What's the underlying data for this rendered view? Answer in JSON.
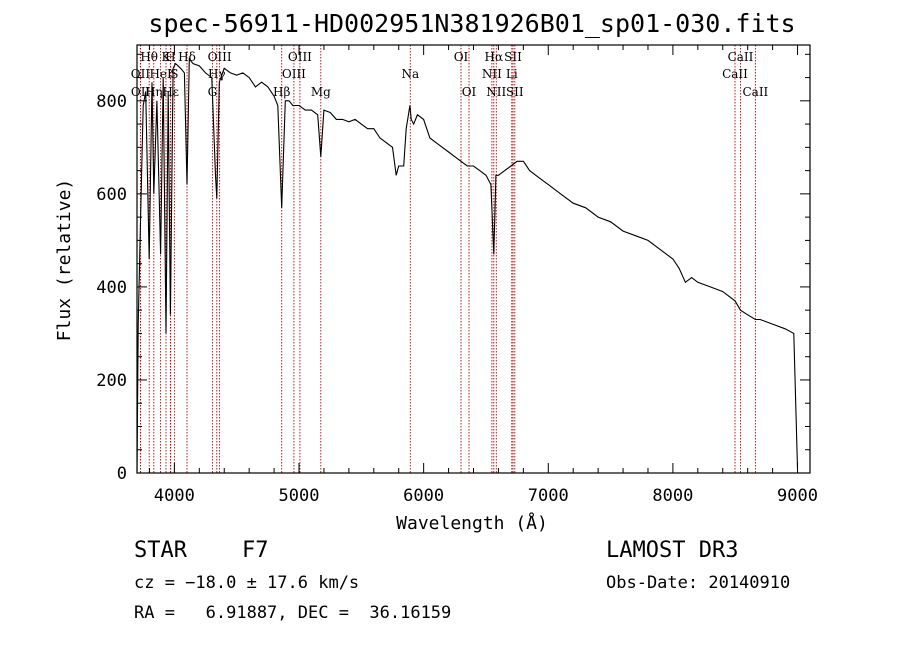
{
  "chart_data": {
    "type": "line",
    "title": "spec-56911-HD002951N381926B01_sp01-030.fits",
    "xlabel": "Wavelength (Å)",
    "ylabel": "Flux (relative)",
    "xlim": [
      3700,
      9100
    ],
    "ylim": [
      0,
      920
    ],
    "xticks": [
      4000,
      5000,
      6000,
      7000,
      8000,
      9000
    ],
    "yticks": [
      0,
      200,
      400,
      600,
      800
    ],
    "series": [
      {
        "name": "flux",
        "x": [
          3700,
          3710,
          3730,
          3750,
          3770,
          3798,
          3820,
          3835,
          3860,
          3889,
          3910,
          3933,
          3950,
          3968,
          3990,
          4010,
          4050,
          4080,
          4101,
          4120,
          4150,
          4200,
          4250,
          4300,
          4330,
          4340,
          4360,
          4400,
          4450,
          4500,
          4550,
          4600,
          4650,
          4700,
          4750,
          4800,
          4830,
          4861,
          4890,
          4920,
          4950,
          5000,
          5050,
          5100,
          5150,
          5175,
          5200,
          5250,
          5300,
          5350,
          5400,
          5450,
          5500,
          5550,
          5600,
          5650,
          5700,
          5750,
          5780,
          5800,
          5840,
          5860,
          5890,
          5900,
          5920,
          5950,
          6000,
          6050,
          6100,
          6150,
          6200,
          6250,
          6300,
          6350,
          6400,
          6450,
          6500,
          6540,
          6563,
          6580,
          6600,
          6650,
          6700,
          6750,
          6800,
          6850,
          6900,
          6950,
          7000,
          7100,
          7200,
          7300,
          7400,
          7500,
          7600,
          7700,
          7800,
          7900,
          8000,
          8050,
          8100,
          8150,
          8200,
          8300,
          8400,
          8498,
          8542,
          8600,
          8662,
          8700,
          8800,
          8900,
          8970,
          9000
        ],
        "values": [
          0,
          320,
          560,
          790,
          820,
          460,
          840,
          600,
          800,
          470,
          850,
          300,
          820,
          340,
          870,
          880,
          870,
          860,
          620,
          890,
          880,
          875,
          860,
          850,
          640,
          590,
          840,
          870,
          860,
          855,
          860,
          850,
          830,
          840,
          830,
          810,
          790,
          570,
          800,
          800,
          790,
          790,
          780,
          780,
          770,
          680,
          780,
          775,
          760,
          760,
          755,
          760,
          750,
          740,
          740,
          720,
          710,
          700,
          640,
          660,
          660,
          740,
          790,
          760,
          750,
          770,
          760,
          720,
          710,
          700,
          690,
          680,
          670,
          660,
          660,
          650,
          640,
          620,
          470,
          640,
          640,
          650,
          660,
          670,
          670,
          650,
          640,
          630,
          620,
          600,
          580,
          570,
          550,
          540,
          520,
          510,
          500,
          480,
          460,
          440,
          410,
          420,
          410,
          400,
          390,
          370,
          350,
          340,
          330,
          330,
          320,
          310,
          300,
          10
        ]
      }
    ],
    "spectral_lines": [
      {
        "label": "Hθ",
        "wavelength": 3798,
        "row": 1
      },
      {
        "label": "OII",
        "wavelength": 3727,
        "row": 2
      },
      {
        "label": "OII",
        "wavelength": 3729,
        "row": 3
      },
      {
        "label": "HeI",
        "wavelength": 3889,
        "row": 2
      },
      {
        "label": "Hη",
        "wavelength": 3835,
        "row": 3
      },
      {
        "label": "K",
        "wavelength": 3933,
        "row": 1
      },
      {
        "label": "H",
        "wavelength": 3968,
        "row": 1
      },
      {
        "label": "Hε",
        "wavelength": 3970,
        "row": 3
      },
      {
        "label": "S",
        "wavelength": 4000,
        "row": 2
      },
      {
        "label": "Hδ",
        "wavelength": 4101,
        "row": 1
      },
      {
        "label": "OIII",
        "wavelength": 4363,
        "row": 1
      },
      {
        "label": "Hγ",
        "wavelength": 4340,
        "row": 2
      },
      {
        "label": "G",
        "wavelength": 4305,
        "row": 3
      },
      {
        "label": "OIII",
        "wavelength": 5007,
        "row": 1
      },
      {
        "label": "OIII",
        "wavelength": 4959,
        "row": 2
      },
      {
        "label": "Hβ",
        "wavelength": 4861,
        "row": 3
      },
      {
        "label": "Mg",
        "wavelength": 5175,
        "row": 3
      },
      {
        "label": "Na",
        "wavelength": 5893,
        "row": 2
      },
      {
        "label": "OI",
        "wavelength": 6300,
        "row": 1
      },
      {
        "label": "OI",
        "wavelength": 6364,
        "row": 3
      },
      {
        "label": "Hα",
        "wavelength": 6563,
        "row": 1
      },
      {
        "label": "NII",
        "wavelength": 6548,
        "row": 2
      },
      {
        "label": "NII",
        "wavelength": 6583,
        "row": 3
      },
      {
        "label": "SII",
        "wavelength": 6717,
        "row": 1
      },
      {
        "label": "Li",
        "wavelength": 6707,
        "row": 2
      },
      {
        "label": "SII",
        "wavelength": 6731,
        "row": 3
      },
      {
        "label": "CaII",
        "wavelength": 8498,
        "row": 2
      },
      {
        "label": "CaII",
        "wavelength": 8542,
        "row": 1
      },
      {
        "label": "CaII",
        "wavelength": 8662,
        "row": 3
      }
    ]
  },
  "footer": {
    "star_type": "STAR",
    "spectral_class": "F7",
    "survey": "LAMOST DR3",
    "cz_line": "cz = −18.0 ± 17.6 km/s",
    "obs_date_line": "Obs-Date: 20140910",
    "coord_line": "RA =   6.91887, DEC =  36.16159"
  },
  "colors": {
    "axis": "#000000",
    "spectrum": "#000000",
    "line_markers": "#c00000"
  }
}
